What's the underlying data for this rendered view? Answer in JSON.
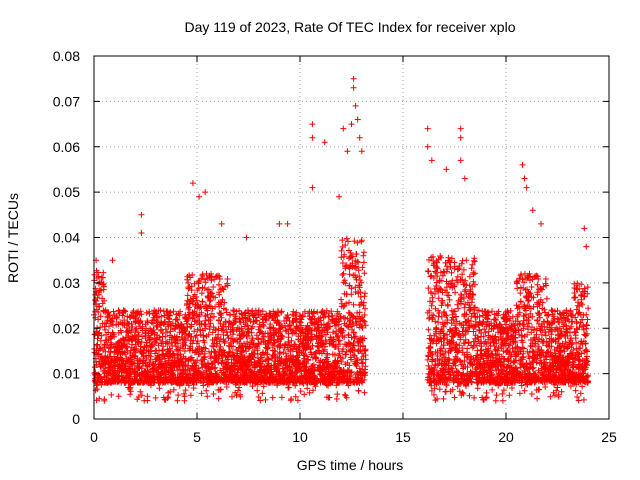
{
  "chart_data": {
    "type": "scatter",
    "title": "Day 119 of 2023, Rate Of TEC Index for receiver xplo",
    "xlabel": "GPS time / hours",
    "ylabel": "ROTI / TECUs",
    "xlim": [
      0,
      25
    ],
    "ylim": [
      0,
      0.08
    ],
    "xticks": [
      "0",
      "5",
      "10",
      "15",
      "20",
      "25"
    ],
    "yticks": [
      "0",
      "0.01",
      "0.02",
      "0.03",
      "0.04",
      "0.05",
      "0.06",
      "0.07",
      "0.08"
    ],
    "grid": true,
    "marker": "+",
    "color": "#ff0000",
    "series": [
      {
        "name": "ROTI",
        "data_coverage_hours": [
          [
            0.0,
            13.2
          ],
          [
            16.2,
            24.0
          ]
        ],
        "typical_range": [
          0.005,
          0.025
        ],
        "notable_points": [
          [
            0.1,
            0.035
          ],
          [
            0.9,
            0.035
          ],
          [
            2.3,
            0.045
          ],
          [
            2.3,
            0.041
          ],
          [
            4.8,
            0.052
          ],
          [
            5.1,
            0.049
          ],
          [
            5.4,
            0.05
          ],
          [
            6.2,
            0.043
          ],
          [
            7.4,
            0.04
          ],
          [
            9.0,
            0.043
          ],
          [
            9.4,
            0.043
          ],
          [
            10.6,
            0.065
          ],
          [
            10.6,
            0.062
          ],
          [
            10.6,
            0.051
          ],
          [
            11.2,
            0.061
          ],
          [
            11.9,
            0.049
          ],
          [
            12.1,
            0.064
          ],
          [
            12.3,
            0.059
          ],
          [
            12.5,
            0.065
          ],
          [
            12.6,
            0.075
          ],
          [
            12.6,
            0.073
          ],
          [
            12.7,
            0.069
          ],
          [
            12.8,
            0.066
          ],
          [
            12.9,
            0.062
          ],
          [
            13.0,
            0.059
          ],
          [
            16.2,
            0.064
          ],
          [
            16.2,
            0.06
          ],
          [
            16.4,
            0.057
          ],
          [
            17.1,
            0.055
          ],
          [
            17.8,
            0.064
          ],
          [
            17.8,
            0.062
          ],
          [
            17.8,
            0.057
          ],
          [
            18.0,
            0.053
          ],
          [
            20.8,
            0.056
          ],
          [
            20.9,
            0.053
          ],
          [
            21.0,
            0.051
          ],
          [
            21.3,
            0.046
          ],
          [
            21.7,
            0.043
          ],
          [
            23.8,
            0.042
          ],
          [
            23.9,
            0.038
          ],
          [
            0.5,
            0.004
          ],
          [
            4.4,
            0.005
          ],
          [
            5.5,
            0.005
          ],
          [
            22.7,
            0.006
          ],
          [
            3.7,
            0.006
          ],
          [
            1.2,
            0.005
          ]
        ]
      }
    ]
  }
}
